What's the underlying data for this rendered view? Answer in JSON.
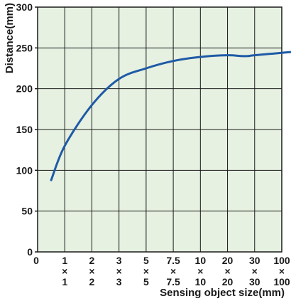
{
  "chart_data": {
    "type": "line",
    "title": "",
    "xlabel": "Sensing object size(mm)",
    "ylabel": "Distance(mm)",
    "ylim": [
      0,
      300
    ],
    "y_ticks": [
      "0",
      "50",
      "100",
      "150",
      "200",
      "250",
      "300"
    ],
    "x_origin_label": "0",
    "x_ticks": [
      {
        "top": "1",
        "mid": "×",
        "bottom": "1"
      },
      {
        "top": "2",
        "mid": "×",
        "bottom": "2"
      },
      {
        "top": "3",
        "mid": "×",
        "bottom": "3"
      },
      {
        "top": "5",
        "mid": "×",
        "bottom": "5"
      },
      {
        "top": "7.5",
        "mid": "×",
        "bottom": "7.5"
      },
      {
        "top": "10",
        "mid": "×",
        "bottom": "10"
      },
      {
        "top": "20",
        "mid": "×",
        "bottom": "20"
      },
      {
        "top": "30",
        "mid": "×",
        "bottom": "30"
      },
      {
        "top": "100",
        "mid": "×",
        "bottom": "100"
      }
    ],
    "grid": true,
    "series": [
      {
        "x": [
          0.5,
          1,
          2,
          3,
          4,
          5,
          6,
          7,
          7.5,
          7.75,
          8,
          9,
          10,
          11,
          12,
          13,
          13.75
        ],
        "y": [
          88,
          130,
          180,
          212,
          225,
          234,
          239,
          241,
          240,
          240,
          241,
          244,
          247,
          251,
          256,
          258,
          257
        ]
      }
    ],
    "colors": {
      "plot_background": "#e6f1e1",
      "grid": "#1a1a1a",
      "line": "#1f5aa6",
      "text": "#1a1a1a"
    }
  }
}
